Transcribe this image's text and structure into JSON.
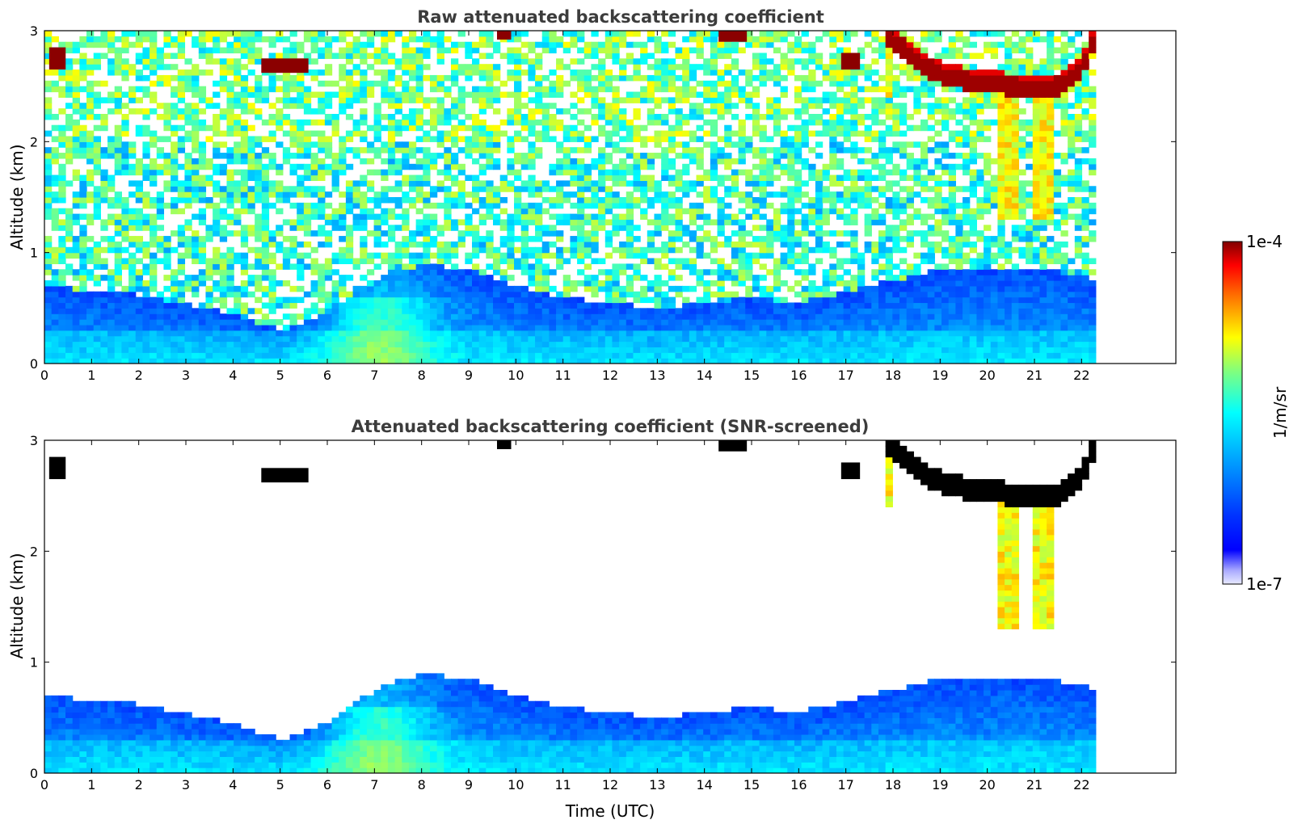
{
  "chart_data": [
    {
      "type": "heatmap",
      "title": "Raw attenuated backscattering coefficient",
      "xlabel": "",
      "ylabel": "Altitude (km)",
      "xlim": [
        0,
        24
      ],
      "ylim": [
        0,
        3
      ],
      "x_ticks": [
        "0",
        "1",
        "2",
        "3",
        "4",
        "5",
        "6",
        "7",
        "8",
        "9",
        "10",
        "11",
        "12",
        "13",
        "14",
        "15",
        "16",
        "17",
        "18",
        "19",
        "20",
        "21",
        "22"
      ],
      "y_ticks": [
        "0",
        "1",
        "2",
        "3"
      ],
      "data_extent_hours": 22.3,
      "colorscale": "jet (log)",
      "features": {
        "boundary_layer_top_km": [
          {
            "x": 0,
            "y": 0.7
          },
          {
            "x": 2,
            "y": 0.62
          },
          {
            "x": 4,
            "y": 0.45
          },
          {
            "x": 5,
            "y": 0.3
          },
          {
            "x": 6,
            "y": 0.45
          },
          {
            "x": 7,
            "y": 0.75
          },
          {
            "x": 8,
            "y": 0.9
          },
          {
            "x": 9,
            "y": 0.85
          },
          {
            "x": 10,
            "y": 0.7
          },
          {
            "x": 11,
            "y": 0.6
          },
          {
            "x": 12,
            "y": 0.55
          },
          {
            "x": 13,
            "y": 0.5
          },
          {
            "x": 14,
            "y": 0.55
          },
          {
            "x": 15,
            "y": 0.6
          },
          {
            "x": 16,
            "y": 0.55
          },
          {
            "x": 17,
            "y": 0.65
          },
          {
            "x": 18,
            "y": 0.75
          },
          {
            "x": 19,
            "y": 0.85
          },
          {
            "x": 20,
            "y": 0.85
          },
          {
            "x": 21,
            "y": 0.85
          },
          {
            "x": 22,
            "y": 0.8
          },
          {
            "x": 22.3,
            "y": 0.75
          }
        ],
        "cloud_layer_km": [
          {
            "x": 17.8,
            "y": 2.95
          },
          {
            "x": 18.2,
            "y": 2.85
          },
          {
            "x": 18.6,
            "y": 2.7
          },
          {
            "x": 19.0,
            "y": 2.6
          },
          {
            "x": 19.5,
            "y": 2.55
          },
          {
            "x": 20.0,
            "y": 2.52
          },
          {
            "x": 20.5,
            "y": 2.5
          },
          {
            "x": 21.0,
            "y": 2.48
          },
          {
            "x": 21.5,
            "y": 2.5
          },
          {
            "x": 22.0,
            "y": 2.65
          },
          {
            "x": 22.3,
            "y": 2.95
          }
        ],
        "virga_centers_hours": [
          20.45,
          21.2,
          17.75
        ]
      }
    },
    {
      "type": "heatmap",
      "title": "Attenuated backscattering coefficient (SNR-screened)",
      "xlabel": "Time (UTC)",
      "ylabel": "Altitude (km)",
      "xlim": [
        0,
        24
      ],
      "ylim": [
        0,
        3
      ],
      "x_ticks": [
        "0",
        "1",
        "2",
        "3",
        "4",
        "5",
        "6",
        "7",
        "8",
        "9",
        "10",
        "11",
        "12",
        "13",
        "14",
        "15",
        "16",
        "17",
        "18",
        "19",
        "20",
        "21",
        "22"
      ],
      "y_ticks": [
        "0",
        "1",
        "2",
        "3"
      ],
      "data_extent_hours": 22.3,
      "colorscale": "jet (log)",
      "screened_values_color": "#ffffff",
      "saturated_values_color": "#000000"
    }
  ],
  "colorbar": {
    "max_label": "1e-4",
    "min_label": "1e-7",
    "label": "1/m/sr",
    "range": [
      1e-07,
      0.0001
    ],
    "scale": "log"
  },
  "colors": {
    "title": "#3c3c3c",
    "cloud_core": "#8b0000",
    "boundary_layer": "#1e50ff",
    "aerosol_peak": "#2ad6d6"
  }
}
